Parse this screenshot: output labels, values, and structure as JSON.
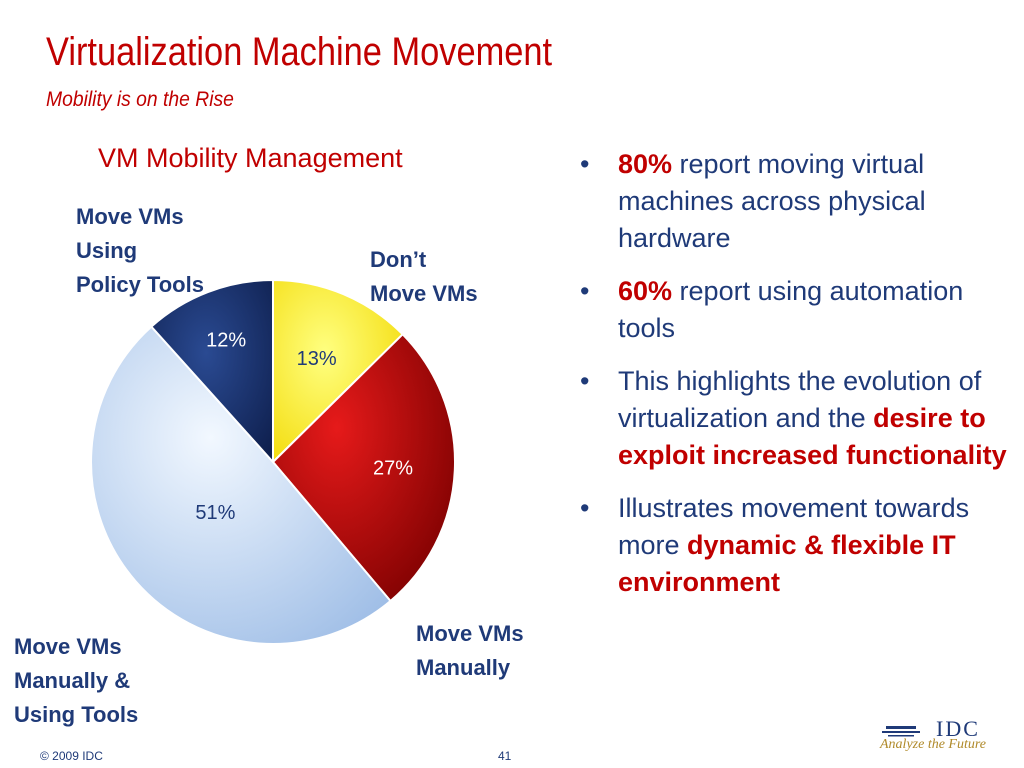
{
  "slide": {
    "title": "Virtualization Machine Movement",
    "subtitle": "Mobility is on the Rise"
  },
  "chart_data": {
    "type": "pie",
    "title": "VM Mobility Management",
    "start_angle_deg": 0,
    "direction": "clockwise",
    "slices": [
      {
        "label": "Don’t Move VMs",
        "label_lines": [
          "Don’t",
          "Move VMs"
        ],
        "value": 13,
        "value_label": "13%",
        "color": "#ffee00",
        "text_color": "#1f3a78"
      },
      {
        "label": "Move VMs Manually",
        "label_lines": [
          "Move VMs",
          "Manually"
        ],
        "value": 27,
        "value_label": "27%",
        "color": "#cc0000",
        "text_color": "#ffffff"
      },
      {
        "label": "Move VMs Manually & Using Tools",
        "label_lines": [
          "Move VMs",
          "Manually &",
          "Using Tools"
        ],
        "value": 51,
        "value_label": "51%",
        "color": "#c8dcf5",
        "text_color": "#1f3a78"
      },
      {
        "label": "Move VMs Using Policy Tools",
        "label_lines": [
          "Move VMs",
          "Using",
          "Policy Tools"
        ],
        "value": 12,
        "value_label": "12%",
        "color": "#1a2f6b",
        "text_color": "#ffffff"
      }
    ]
  },
  "bullets": [
    {
      "bold": "80%",
      "text": " report moving virtual machines across physical hardware"
    },
    {
      "bold": "60%",
      "text": " report using automation tools"
    },
    {
      "pre": "This highlights the evolution of virtualization and the ",
      "bold": "desire to exploit increased functionality"
    },
    {
      "pre": "Illustrates movement towards more ",
      "bold": "dynamic & flexible IT environment"
    }
  ],
  "footer": {
    "copyright": "© 2009 IDC",
    "page": "41"
  },
  "logo": {
    "name": "IDC",
    "tagline": "Analyze the Future",
    "color": "#1f3a78",
    "tag_color": "#b08a2a"
  }
}
